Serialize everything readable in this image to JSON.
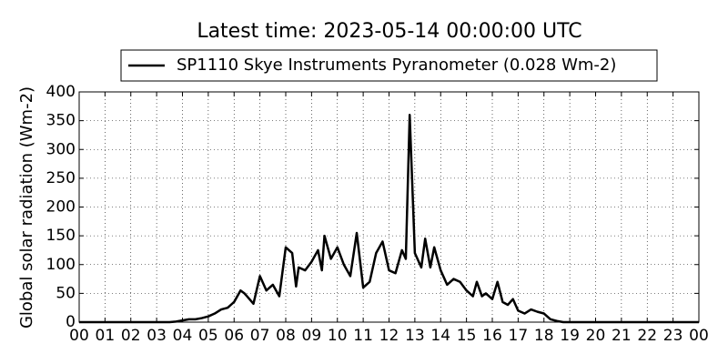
{
  "chart_data": {
    "type": "line",
    "title": "Latest time: 2023-05-14 00:00:00 UTC",
    "y_label": "Global solar radiation (Wm-2)",
    "x": [
      0,
      1,
      2,
      3,
      3.5,
      3.75,
      4,
      4.25,
      4.5,
      4.75,
      5,
      5.25,
      5.5,
      5.75,
      6,
      6.25,
      6.4,
      6.5,
      6.75,
      7,
      7.25,
      7.5,
      7.75,
      8,
      8.25,
      8.4,
      8.5,
      8.75,
      9,
      9.25,
      9.4,
      9.5,
      9.75,
      10,
      10.25,
      10.5,
      10.75,
      11,
      11.25,
      11.5,
      11.75,
      12,
      12.25,
      12.5,
      12.65,
      12.8,
      13,
      13.25,
      13.4,
      13.6,
      13.75,
      14,
      14.25,
      14.5,
      14.75,
      15,
      15.25,
      15.4,
      15.6,
      15.75,
      16,
      16.2,
      16.4,
      16.6,
      16.8,
      17,
      17.25,
      17.5,
      17.75,
      18,
      18.25,
      18.5,
      18.75,
      19,
      20,
      24
    ],
    "series": [
      {
        "name": "SP1110 Skye Instruments Pyranometer (0.028 Wm-2)",
        "color": "#000000",
        "values": [
          0,
          0,
          0,
          0,
          0,
          1,
          3,
          5,
          5,
          7,
          10,
          15,
          22,
          25,
          35,
          55,
          50,
          45,
          32,
          80,
          55,
          65,
          45,
          130,
          120,
          62,
          95,
          90,
          105,
          125,
          90,
          150,
          110,
          130,
          100,
          80,
          155,
          60,
          70,
          120,
          140,
          90,
          85,
          125,
          110,
          360,
          120,
          95,
          145,
          95,
          130,
          90,
          65,
          75,
          70,
          55,
          45,
          70,
          45,
          50,
          40,
          70,
          35,
          30,
          40,
          20,
          15,
          22,
          18,
          15,
          5,
          2,
          0,
          0,
          0,
          0
        ]
      }
    ],
    "xlim": [
      0,
      24
    ],
    "xticks": [
      {
        "value": 0,
        "label": "00"
      },
      {
        "value": 1,
        "label": "01"
      },
      {
        "value": 2,
        "label": "02"
      },
      {
        "value": 3,
        "label": "03"
      },
      {
        "value": 4,
        "label": "04"
      },
      {
        "value": 5,
        "label": "05"
      },
      {
        "value": 6,
        "label": "06"
      },
      {
        "value": 7,
        "label": "07"
      },
      {
        "value": 8,
        "label": "08"
      },
      {
        "value": 9,
        "label": "09"
      },
      {
        "value": 10,
        "label": "10"
      },
      {
        "value": 11,
        "label": "11"
      },
      {
        "value": 12,
        "label": "12"
      },
      {
        "value": 13,
        "label": "13"
      },
      {
        "value": 14,
        "label": "14"
      },
      {
        "value": 15,
        "label": "15"
      },
      {
        "value": 16,
        "label": "16"
      },
      {
        "value": 17,
        "label": "17"
      },
      {
        "value": 18,
        "label": "18"
      },
      {
        "value": 19,
        "label": "19"
      },
      {
        "value": 20,
        "label": "20"
      },
      {
        "value": 21,
        "label": "21"
      },
      {
        "value": 22,
        "label": "22"
      },
      {
        "value": 23,
        "label": "23"
      },
      {
        "value": 24,
        "label": "00"
      }
    ],
    "ylim": [
      0,
      400
    ],
    "yticks": [
      0,
      50,
      100,
      150,
      200,
      250,
      300,
      350,
      400
    ],
    "grid": true,
    "legend": "top"
  }
}
